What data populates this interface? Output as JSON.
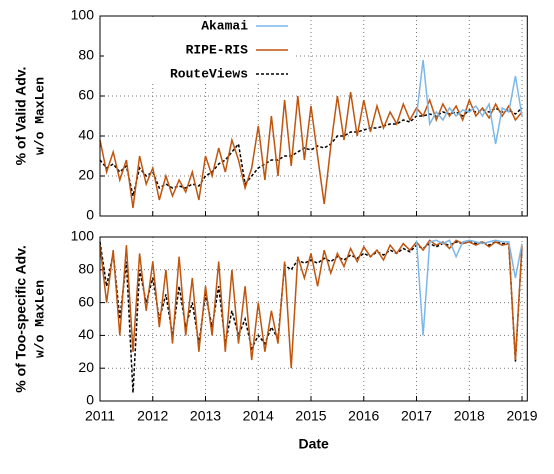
{
  "chart_data": [
    {
      "type": "line",
      "y_label": "% of Valid Adv.",
      "y_label_note": "w/o MaxLen",
      "xlim": [
        2011,
        2019.1
      ],
      "xticks": [
        2011,
        2012,
        2013,
        2014,
        2015,
        2016,
        2017,
        2018,
        2019
      ],
      "show_xtick_labels": false,
      "ylim": [
        0,
        100
      ],
      "yticks": [
        0,
        20,
        40,
        60,
        80,
        100
      ],
      "grid": true,
      "legend": "top",
      "series": [
        {
          "name": "Akamai",
          "color": "#7cb7ea",
          "dashed": false,
          "x": [
            2017.0,
            2017.125,
            2017.25,
            2017.375,
            2017.5,
            2017.625,
            2017.75,
            2017.875,
            2018.0,
            2018.125,
            2018.25,
            2018.375,
            2018.5,
            2018.625,
            2018.75,
            2018.875,
            2019.0
          ],
          "values": [
            50,
            78,
            46,
            52,
            48,
            54,
            50,
            53,
            52,
            55,
            50,
            56,
            36,
            54,
            52,
            70,
            50
          ]
        },
        {
          "name": "RIPE-RIS",
          "color": "#c0550e",
          "dashed": false,
          "x": [
            2011.0,
            2011.125,
            2011.25,
            2011.375,
            2011.5,
            2011.625,
            2011.75,
            2011.875,
            2012.0,
            2012.125,
            2012.25,
            2012.375,
            2012.5,
            2012.625,
            2012.75,
            2012.875,
            2013.0,
            2013.125,
            2013.25,
            2013.375,
            2013.5,
            2013.625,
            2013.75,
            2013.875,
            2014.0,
            2014.125,
            2014.25,
            2014.375,
            2014.5,
            2014.625,
            2014.75,
            2014.875,
            2015.0,
            2015.125,
            2015.25,
            2015.375,
            2015.5,
            2015.625,
            2015.75,
            2015.875,
            2016.0,
            2016.125,
            2016.25,
            2016.375,
            2016.5,
            2016.625,
            2016.75,
            2016.875,
            2017.0,
            2017.125,
            2017.25,
            2017.375,
            2017.5,
            2017.625,
            2017.75,
            2017.875,
            2018.0,
            2018.125,
            2018.25,
            2018.375,
            2018.5,
            2018.625,
            2018.75,
            2018.875,
            2019.0
          ],
          "values": [
            38,
            22,
            32,
            18,
            28,
            4,
            30,
            16,
            24,
            8,
            20,
            10,
            18,
            12,
            22,
            8,
            30,
            20,
            34,
            22,
            38,
            28,
            14,
            24,
            45,
            18,
            50,
            20,
            58,
            25,
            60,
            28,
            55,
            30,
            6,
            35,
            60,
            38,
            62,
            40,
            58,
            42,
            55,
            44,
            52,
            46,
            56,
            48,
            54,
            50,
            58,
            48,
            56,
            50,
            55,
            48,
            58,
            50,
            54,
            49,
            56,
            50,
            55,
            48,
            52
          ]
        },
        {
          "name": "RouteViews",
          "color": "#000000",
          "dashed": true,
          "x": [
            2011.0,
            2011.125,
            2011.25,
            2011.375,
            2011.5,
            2011.625,
            2011.75,
            2011.875,
            2012.0,
            2012.125,
            2012.25,
            2012.375,
            2012.5,
            2012.625,
            2012.75,
            2012.875,
            2013.0,
            2013.125,
            2013.25,
            2013.375,
            2013.5,
            2013.625,
            2013.75,
            2013.875,
            2014.0,
            2014.125,
            2014.25,
            2014.375,
            2014.5,
            2014.625,
            2014.75,
            2014.875,
            2015.0,
            2015.125,
            2015.25,
            2015.375,
            2015.5,
            2015.625,
            2015.75,
            2015.875,
            2016.0,
            2016.125,
            2016.25,
            2016.375,
            2016.5,
            2016.625,
            2016.75,
            2016.875,
            2017.0,
            2017.125,
            2017.25,
            2017.375,
            2017.5,
            2017.625,
            2017.75,
            2017.875,
            2018.0,
            2018.125,
            2018.25,
            2018.375,
            2018.5,
            2018.625,
            2018.75,
            2018.875,
            2019.0
          ],
          "values": [
            28,
            24,
            26,
            22,
            25,
            10,
            24,
            20,
            22,
            14,
            16,
            14,
            15,
            14,
            16,
            15,
            20,
            22,
            26,
            28,
            32,
            36,
            16,
            20,
            24,
            26,
            28,
            28,
            30,
            30,
            32,
            34,
            33,
            35,
            34,
            36,
            40,
            40,
            42,
            42,
            43,
            44,
            44,
            45,
            46,
            46,
            48,
            47,
            50,
            50,
            51,
            50,
            52,
            51,
            52,
            50,
            53,
            52,
            53,
            52,
            54,
            52,
            53,
            51,
            54
          ]
        }
      ]
    },
    {
      "type": "line",
      "y_label": "% of Too-specific Adv.",
      "y_label_note": "w/o MaxLen",
      "x_label": "Date",
      "xlim": [
        2011,
        2019.1
      ],
      "xticks": [
        2011,
        2012,
        2013,
        2014,
        2015,
        2016,
        2017,
        2018,
        2019
      ],
      "show_xtick_labels": true,
      "ylim": [
        0,
        100
      ],
      "yticks": [
        0,
        20,
        40,
        60,
        80,
        100
      ],
      "grid": true,
      "series": [
        {
          "name": "Akamai",
          "color": "#7cb7ea",
          "dashed": false,
          "x": [
            2017.0,
            2017.125,
            2017.25,
            2017.375,
            2017.5,
            2017.625,
            2017.75,
            2017.875,
            2018.0,
            2018.125,
            2018.25,
            2018.375,
            2018.5,
            2018.625,
            2018.75,
            2018.875,
            2019.0
          ],
          "values": [
            98,
            40,
            97,
            98,
            96,
            98,
            88,
            97,
            98,
            97,
            96,
            97,
            98,
            97,
            97,
            75,
            96
          ]
        },
        {
          "name": "RIPE-RIS",
          "color": "#c0550e",
          "dashed": false,
          "x": [
            2011.0,
            2011.125,
            2011.25,
            2011.375,
            2011.5,
            2011.625,
            2011.75,
            2011.875,
            2012.0,
            2012.125,
            2012.25,
            2012.375,
            2012.5,
            2012.625,
            2012.75,
            2012.875,
            2013.0,
            2013.125,
            2013.25,
            2013.375,
            2013.5,
            2013.625,
            2013.75,
            2013.875,
            2014.0,
            2014.125,
            2014.25,
            2014.375,
            2014.5,
            2014.625,
            2014.75,
            2014.875,
            2015.0,
            2015.125,
            2015.25,
            2015.375,
            2015.5,
            2015.625,
            2015.75,
            2015.875,
            2016.0,
            2016.125,
            2016.25,
            2016.375,
            2016.5,
            2016.625,
            2016.75,
            2016.875,
            2017.0,
            2017.125,
            2017.25,
            2017.375,
            2017.5,
            2017.625,
            2017.75,
            2017.875,
            2018.0,
            2018.125,
            2018.25,
            2018.375,
            2018.5,
            2018.625,
            2018.75,
            2018.875,
            2019.0
          ],
          "values": [
            95,
            60,
            92,
            40,
            95,
            30,
            90,
            55,
            85,
            45,
            80,
            35,
            88,
            40,
            75,
            30,
            70,
            40,
            85,
            30,
            80,
            35,
            70,
            25,
            60,
            30,
            55,
            35,
            85,
            20,
            88,
            75,
            90,
            70,
            92,
            78,
            90,
            82,
            93,
            85,
            94,
            88,
            92,
            86,
            95,
            90,
            96,
            92,
            97,
            92,
            98,
            95,
            97,
            93,
            98,
            96,
            97,
            95,
            97,
            94,
            97,
            95,
            96,
            25,
            95
          ]
        },
        {
          "name": "RouteViews",
          "color": "#000000",
          "dashed": true,
          "x": [
            2011.0,
            2011.125,
            2011.25,
            2011.375,
            2011.5,
            2011.625,
            2011.75,
            2011.875,
            2012.0,
            2012.125,
            2012.25,
            2012.375,
            2012.5,
            2012.625,
            2012.75,
            2012.875,
            2013.0,
            2013.125,
            2013.25,
            2013.375,
            2013.5,
            2013.625,
            2013.75,
            2013.875,
            2014.0,
            2014.125,
            2014.25,
            2014.375,
            2014.5,
            2014.625,
            2014.75,
            2014.875,
            2015.0,
            2015.125,
            2015.25,
            2015.375,
            2015.5,
            2015.625,
            2015.75,
            2015.875,
            2016.0,
            2016.125,
            2016.25,
            2016.375,
            2016.5,
            2016.625,
            2016.75,
            2016.875,
            2017.0,
            2017.125,
            2017.25,
            2017.375,
            2017.5,
            2017.625,
            2017.75,
            2017.875,
            2018.0,
            2018.125,
            2018.25,
            2018.375,
            2018.5,
            2018.625,
            2018.75,
            2018.875,
            2019.0
          ],
          "values": [
            97,
            70,
            90,
            50,
            85,
            5,
            80,
            60,
            75,
            50,
            65,
            40,
            70,
            45,
            60,
            35,
            65,
            45,
            70,
            35,
            55,
            40,
            50,
            32,
            40,
            35,
            45,
            38,
            83,
            80,
            86,
            84,
            86,
            84,
            87,
            85,
            88,
            86,
            89,
            87,
            90,
            88,
            91,
            89,
            92,
            90,
            93,
            91,
            95,
            93,
            96,
            94,
            96,
            95,
            97,
            96,
            97,
            96,
            97,
            95,
            97,
            96,
            96,
            24,
            94
          ]
        }
      ]
    }
  ]
}
